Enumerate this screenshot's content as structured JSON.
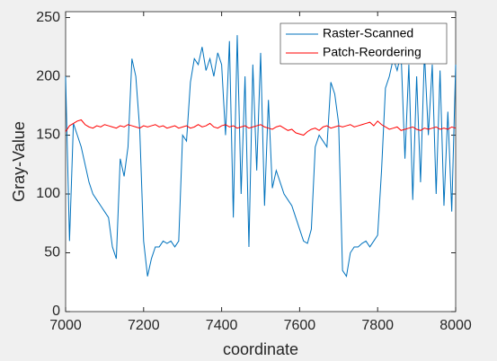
{
  "chart_data": {
    "type": "line",
    "xlabel": "coordinate",
    "ylabel": "Gray-Value",
    "x": [
      7000,
      7010,
      7020,
      7030,
      7040,
      7050,
      7060,
      7070,
      7080,
      7090,
      7100,
      7110,
      7120,
      7130,
      7140,
      7150,
      7160,
      7170,
      7180,
      7190,
      7200,
      7210,
      7220,
      7230,
      7240,
      7250,
      7260,
      7270,
      7280,
      7290,
      7300,
      7310,
      7320,
      7330,
      7340,
      7350,
      7360,
      7370,
      7380,
      7390,
      7400,
      7410,
      7420,
      7430,
      7440,
      7450,
      7460,
      7470,
      7480,
      7490,
      7500,
      7510,
      7520,
      7530,
      7540,
      7550,
      7560,
      7570,
      7580,
      7590,
      7600,
      7610,
      7620,
      7630,
      7640,
      7650,
      7660,
      7670,
      7680,
      7690,
      7700,
      7710,
      7720,
      7730,
      7740,
      7750,
      7760,
      7770,
      7780,
      7790,
      7800,
      7810,
      7820,
      7830,
      7840,
      7850,
      7860,
      7870,
      7880,
      7890,
      7900,
      7910,
      7920,
      7930,
      7940,
      7950,
      7960,
      7970,
      7980,
      7990,
      8000
    ],
    "series": [
      {
        "name": "Raster-Scanned",
        "color": "#0072bd",
        "values": [
          200,
          60,
          160,
          150,
          140,
          125,
          110,
          100,
          95,
          90,
          85,
          80,
          55,
          45,
          130,
          115,
          140,
          215,
          200,
          155,
          60,
          30,
          45,
          55,
          55,
          60,
          58,
          60,
          55,
          60,
          150,
          145,
          195,
          215,
          210,
          225,
          205,
          215,
          200,
          220,
          210,
          150,
          230,
          80,
          235,
          100,
          200,
          55,
          210,
          120,
          220,
          90,
          180,
          105,
          120,
          110,
          100,
          95,
          90,
          80,
          70,
          60,
          58,
          70,
          140,
          150,
          145,
          140,
          195,
          185,
          160,
          35,
          30,
          50,
          55,
          55,
          58,
          60,
          55,
          60,
          65,
          120,
          190,
          200,
          215,
          205,
          220,
          130,
          210,
          95,
          200,
          110,
          220,
          150,
          210,
          100,
          205,
          90,
          170,
          85,
          210
        ]
      },
      {
        "name": "Patch-Reordering",
        "color": "#ff0000",
        "values": [
          153,
          158,
          160,
          162,
          163,
          159,
          157,
          156,
          158,
          157,
          159,
          158,
          157,
          156,
          158,
          157,
          159,
          158,
          157,
          156,
          158,
          157,
          158,
          159,
          157,
          158,
          156,
          157,
          158,
          156,
          157,
          158,
          156,
          157,
          159,
          157,
          158,
          160,
          157,
          156,
          158,
          159,
          157,
          158,
          156,
          157,
          158,
          156,
          157,
          158,
          159,
          157,
          156,
          155,
          157,
          158,
          156,
          154,
          155,
          152,
          151,
          150,
          153,
          155,
          156,
          154,
          157,
          158,
          156,
          157,
          158,
          157,
          158,
          159,
          157,
          158,
          159,
          160,
          161,
          158,
          162,
          159,
          157,
          155,
          156,
          157,
          154,
          155,
          156,
          157,
          155,
          154,
          156,
          155,
          156,
          157,
          155,
          156,
          155,
          157,
          156
        ]
      }
    ],
    "xlim": [
      7000,
      8000
    ],
    "xticks": [
      7000,
      7200,
      7400,
      7600,
      7800,
      8000
    ],
    "ylim": [
      0,
      255
    ],
    "yticks": [
      0,
      50,
      100,
      150,
      200,
      250
    ],
    "grid": false,
    "legend": "northeast"
  }
}
